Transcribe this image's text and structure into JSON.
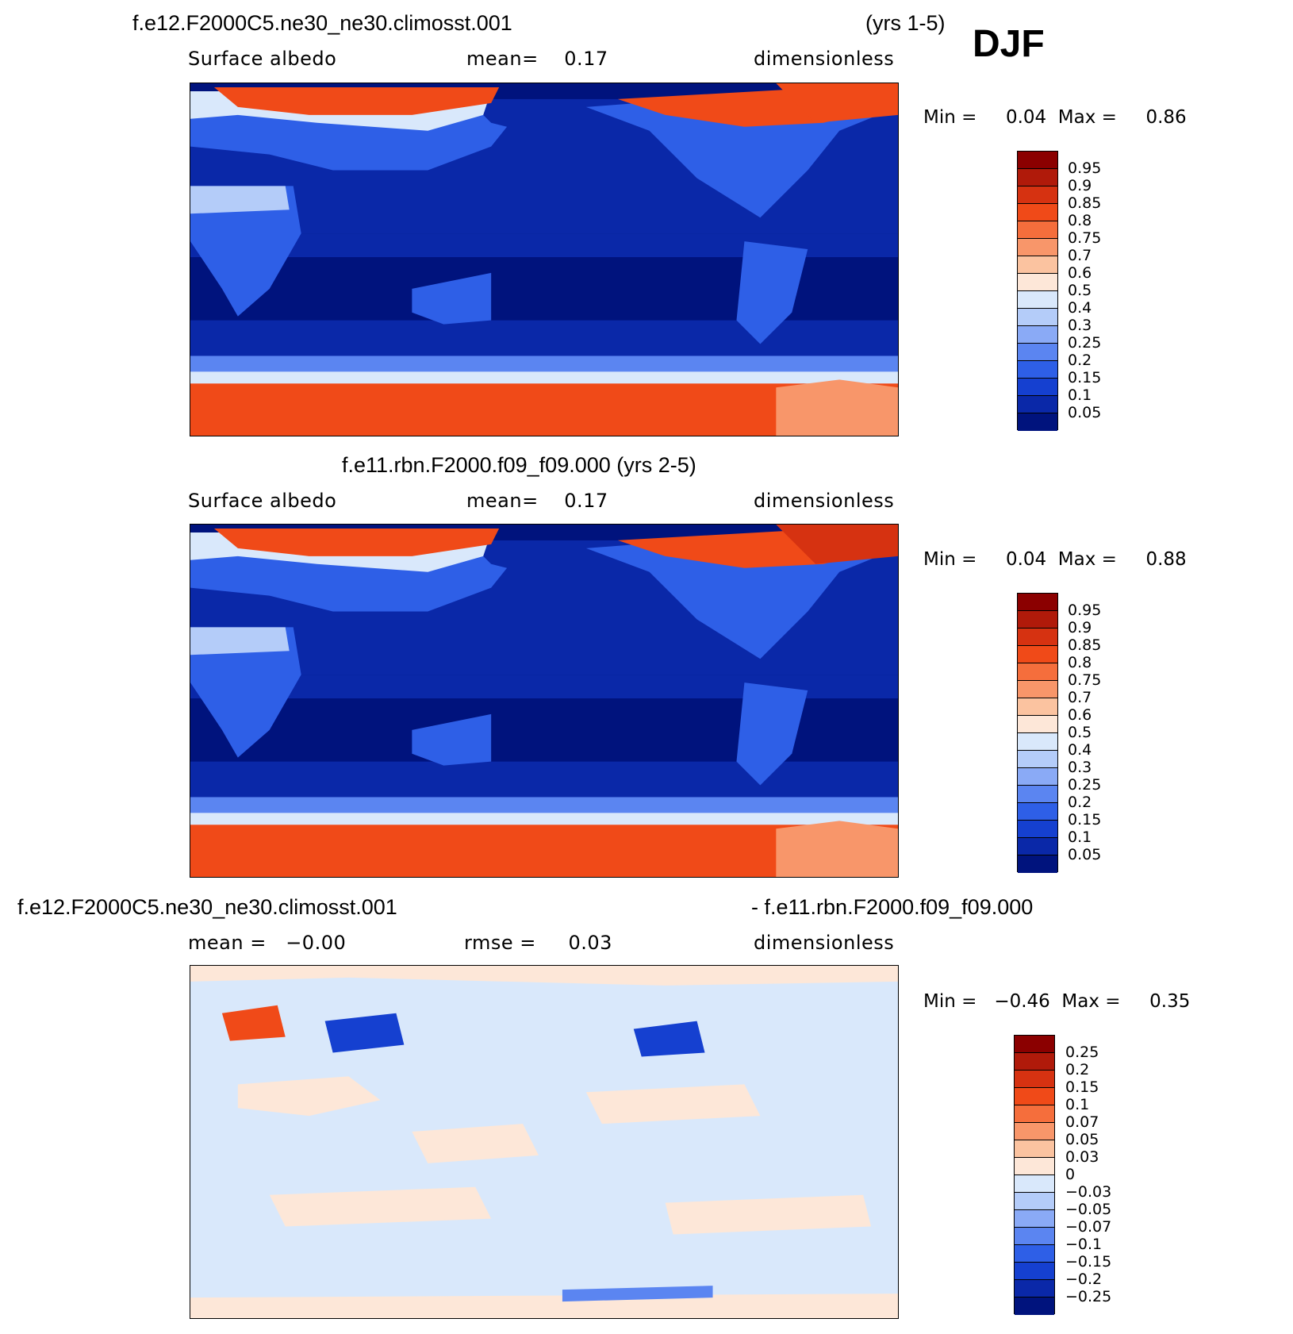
{
  "season": "DJF",
  "panels": [
    {
      "title_left": "f.e12.F2000C5.ne30_ne30.climosst.001",
      "title_right": "(yrs 1-5)",
      "sub_left": "Surface albedo",
      "sub_mid": "mean=    0.17",
      "sub_right": "dimensionless",
      "minmax": "Min =     0.04  Max =     0.86",
      "colorbar_labels": [
        "0.95",
        "0.9",
        "0.85",
        "0.8",
        "0.75",
        "0.7",
        "0.6",
        "0.5",
        "0.4",
        "0.3",
        "0.25",
        "0.2",
        "0.15",
        "0.1",
        "0.05"
      ],
      "colors": [
        "#8b0000",
        "#b01a0a",
        "#d63211",
        "#f04a18",
        "#f56e3c",
        "#f8966a",
        "#fbc3a0",
        "#fde7d8",
        "#d9e8fb",
        "#b4ccf9",
        "#8aaaf6",
        "#5b85f1",
        "#2e5fe7",
        "#1540d0",
        "#0a28a8",
        "#00137d"
      ]
    },
    {
      "title_left": "f.e11.rbn.F2000.f09_f09.000 (yrs 2-5)",
      "sub_left": "Surface albedo",
      "sub_mid": "mean=    0.17",
      "sub_right": "dimensionless",
      "minmax": "Min =     0.04  Max =     0.88",
      "colorbar_labels": [
        "0.95",
        "0.9",
        "0.85",
        "0.8",
        "0.75",
        "0.7",
        "0.6",
        "0.5",
        "0.4",
        "0.3",
        "0.25",
        "0.2",
        "0.15",
        "0.1",
        "0.05"
      ],
      "colors": [
        "#8b0000",
        "#b01a0a",
        "#d63211",
        "#f04a18",
        "#f56e3c",
        "#f8966a",
        "#fbc3a0",
        "#fde7d8",
        "#d9e8fb",
        "#b4ccf9",
        "#8aaaf6",
        "#5b85f1",
        "#2e5fe7",
        "#1540d0",
        "#0a28a8",
        "#00137d"
      ]
    },
    {
      "title_left": "f.e12.F2000C5.ne30_ne30.climosst.001",
      "title_right": "- f.e11.rbn.F2000.f09_f09.000",
      "sub_left": "mean =   −0.00",
      "sub_mid": "rmse =     0.03",
      "sub_right": "dimensionless",
      "minmax": "Min =   −0.46  Max =     0.35",
      "colorbar_labels": [
        "0.25",
        "0.2",
        "0.15",
        "0.1",
        "0.07",
        "0.05",
        "0.03",
        "0",
        "−0.03",
        "−0.05",
        "−0.07",
        "−0.1",
        "−0.15",
        "−0.2",
        "−0.25"
      ],
      "colors": [
        "#8b0000",
        "#b01a0a",
        "#d63211",
        "#f04a18",
        "#f56e3c",
        "#f8966a",
        "#fbc3a0",
        "#fde7d8",
        "#d9e8fb",
        "#b4ccf9",
        "#8aaaf6",
        "#5b85f1",
        "#2e5fe7",
        "#1540d0",
        "#0a28a8",
        "#00137d"
      ]
    }
  ]
}
